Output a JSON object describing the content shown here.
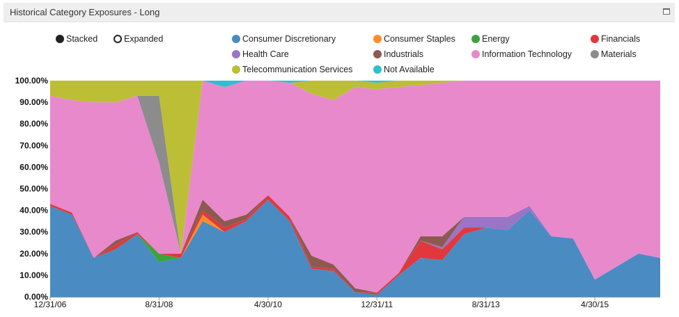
{
  "panel": {
    "title": "Historical Category Exposures - Long",
    "maximize_icon": "window-maximize-icon"
  },
  "controls": {
    "stacked_label": "Stacked",
    "expanded_label": "Expanded",
    "selected": "Stacked"
  },
  "colors": {
    "Consumer Discretionary": "#4a8bc2",
    "Consumer Staples": "#ff8c28",
    "Energy": "#3ca43c",
    "Financials": "#e0383c",
    "Health Care": "#9b74c6",
    "Industrials": "#8c5a50",
    "Information Technology": "#e889cc",
    "Materials": "#8c8c8c",
    "Telecommunication Services": "#bcbe35",
    "Not Available": "#2fbfd0"
  },
  "chart_data": {
    "type": "area",
    "stacked": true,
    "ylim": [
      0,
      100
    ],
    "yticks": [
      "0.00%",
      "10.00%",
      "20.00%",
      "30.00%",
      "40.00%",
      "50.00%",
      "60.00%",
      "70.00%",
      "80.00%",
      "90.00%",
      "100.00%"
    ],
    "xticks": [
      "12/31/06",
      "8/31/08",
      "4/30/10",
      "12/31/11",
      "8/31/13",
      "4/30/15"
    ],
    "legend": [
      "Consumer Discretionary",
      "Consumer Staples",
      "Energy",
      "Financials",
      "Health Care",
      "Industrials",
      "Information Technology",
      "Materials",
      "Telecommunication Services",
      "Not Available"
    ],
    "x": [
      "12/31/06",
      "4/30/07",
      "8/31/07",
      "12/31/07",
      "4/30/08",
      "8/31/08",
      "12/31/08",
      "4/30/09",
      "8/31/09",
      "12/31/09",
      "4/30/10",
      "8/31/10",
      "12/31/10",
      "4/30/11",
      "8/31/11",
      "12/31/11",
      "4/30/12",
      "8/31/12",
      "12/31/12",
      "4/30/13",
      "8/31/13",
      "12/31/13",
      "4/30/14",
      "8/31/14",
      "12/31/14",
      "4/30/15",
      "8/31/15",
      "12/31/15",
      "4/30/16"
    ],
    "series": [
      {
        "name": "Consumer Discretionary",
        "values": [
          42,
          38,
          18,
          22,
          29,
          16,
          18,
          35,
          30,
          35,
          45,
          35,
          13,
          12,
          2,
          1,
          10,
          18,
          17,
          29,
          32,
          31,
          40,
          28,
          27,
          8,
          14,
          20,
          18
        ]
      },
      {
        "name": "Consumer Staples",
        "values": [
          0,
          0,
          0,
          0,
          0,
          0,
          0,
          3,
          0,
          0,
          0,
          0,
          0,
          0,
          0,
          0,
          0,
          0,
          0,
          0,
          0,
          0,
          0,
          0,
          0,
          0,
          0,
          0,
          0
        ]
      },
      {
        "name": "Energy",
        "values": [
          0,
          0,
          0,
          0,
          0,
          4,
          0,
          0,
          0,
          0,
          0,
          0,
          0,
          0,
          0,
          0,
          0,
          0,
          0,
          0,
          0,
          0,
          0,
          0,
          0,
          0,
          0,
          0,
          0
        ]
      },
      {
        "name": "Financials",
        "values": [
          1,
          1,
          0,
          2,
          1,
          0,
          2,
          2,
          2,
          1,
          2,
          2,
          1,
          1,
          0,
          1,
          1,
          8,
          5,
          3,
          0,
          0,
          0,
          0,
          0,
          0,
          0,
          0,
          0
        ]
      },
      {
        "name": "Health Care",
        "values": [
          0,
          0,
          0,
          0,
          0,
          0,
          0,
          0,
          0,
          0,
          0,
          0,
          0,
          0,
          0,
          0,
          0,
          0,
          1,
          5,
          5,
          6,
          2,
          0,
          0,
          0,
          0,
          0,
          0
        ]
      },
      {
        "name": "Industrials",
        "values": [
          0,
          0,
          0,
          2,
          0,
          0,
          0,
          5,
          3,
          2,
          0,
          0,
          5,
          2,
          2,
          0,
          0,
          2,
          5,
          0,
          0,
          0,
          0,
          0,
          0,
          0,
          0,
          0,
          0
        ]
      },
      {
        "name": "Information Technology",
        "values": [
          50,
          52,
          72,
          64,
          63,
          42,
          0,
          55,
          62,
          62,
          53,
          62,
          75,
          76,
          93,
          94,
          86,
          70,
          71,
          63,
          63,
          63,
          58,
          72,
          73,
          92,
          86,
          80,
          82
        ]
      },
      {
        "name": "Materials",
        "values": [
          0,
          0,
          0,
          0,
          0,
          31,
          0,
          0,
          0,
          0,
          0,
          0,
          0,
          0,
          0,
          0,
          0,
          0,
          0,
          0,
          0,
          0,
          0,
          0,
          0,
          0,
          0,
          0,
          0
        ]
      },
      {
        "name": "Telecommunication Services",
        "values": [
          7,
          9,
          10,
          10,
          7,
          7,
          80,
          0,
          0,
          0,
          0,
          0,
          6,
          9,
          3,
          3,
          3,
          2,
          1,
          0,
          0,
          0,
          0,
          0,
          0,
          0,
          0,
          0,
          0
        ]
      },
      {
        "name": "Not Available",
        "values": [
          0,
          0,
          0,
          0,
          0,
          0,
          0,
          0,
          3,
          0,
          0,
          1,
          0,
          0,
          0,
          1,
          0,
          0,
          0,
          0,
          0,
          0,
          0,
          0,
          0,
          0,
          0,
          0,
          0
        ]
      }
    ]
  }
}
